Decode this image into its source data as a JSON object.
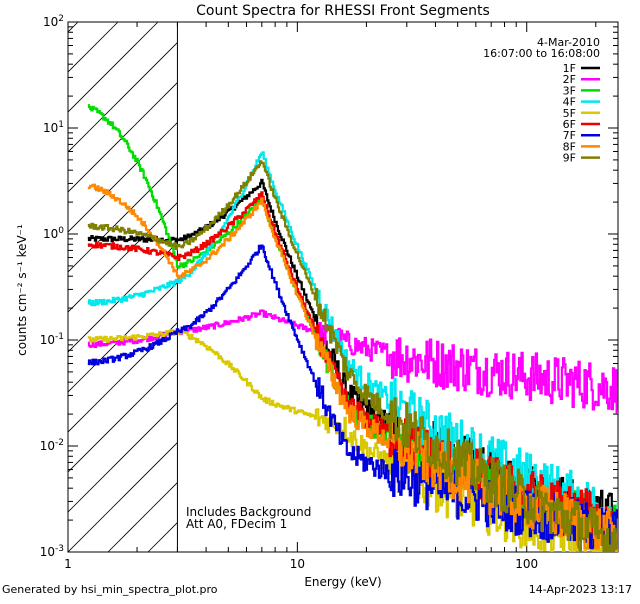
{
  "chart_data": {
    "type": "line",
    "title": "Count Spectra for RHESSI Front Segments",
    "xlabel": "Energy (keV)",
    "ylabel": "counts cm⁻² s⁻¹ keV⁻¹",
    "xscale": "log",
    "yscale": "log",
    "xlim": [
      1,
      250
    ],
    "ylim": [
      0.001,
      100
    ],
    "x_tick_labels": [
      "1",
      "10",
      "100"
    ],
    "y_tick_labels": [
      {
        "mant": "10",
        "exp": "-3",
        "value": 0.001
      },
      {
        "mant": "10",
        "exp": "-2",
        "value": 0.01
      },
      {
        "mant": "10",
        "exp": "-1",
        "value": 0.1
      },
      {
        "mant": "10",
        "exp": "0",
        "value": 1
      },
      {
        "mant": "10",
        "exp": "1",
        "value": 10
      },
      {
        "mant": "10",
        "exp": "2",
        "value": 100
      }
    ],
    "date": "4-Mar-2010",
    "time_range": "16:07:00 to 16:08:00",
    "hatched_region_keV": [
      1,
      3
    ],
    "annotations": [
      "Includes Background",
      "Att A0, FDecim 1"
    ],
    "series": [
      {
        "name": "1F",
        "color": "#000000",
        "low": 0.9,
        "thr": 0.88,
        "peak": 3.1,
        "tail": 0.002
      },
      {
        "name": "2F",
        "color": "#ff00ff",
        "low": 0.09,
        "thr": 0.12,
        "peak": 0.18,
        "tail": 0.035
      },
      {
        "name": "3F",
        "color": "#00dd00",
        "low": 17,
        "thr": 0.5,
        "peak": 2.2,
        "tail": 0.0016
      },
      {
        "name": "4F",
        "color": "#00e8ee",
        "low": 0.22,
        "thr": 0.36,
        "peak": 6.0,
        "tail": 0.0022
      },
      {
        "name": "5F",
        "color": "#d8c800",
        "low": 0.1,
        "thr": 0.12,
        "peak": 0.028,
        "tail": 0.0009
      },
      {
        "name": "6F",
        "color": "#ee0000",
        "low": 0.8,
        "thr": 0.6,
        "peak": 2.4,
        "tail": 0.0018
      },
      {
        "name": "7F",
        "color": "#0000dd",
        "low": 0.06,
        "thr": 0.12,
        "peak": 0.8,
        "tail": 0.0015
      },
      {
        "name": "8F",
        "color": "#ff8800",
        "low": 3.0,
        "thr": 0.4,
        "peak": 2.1,
        "tail": 0.0014
      },
      {
        "name": "9F",
        "color": "#808000",
        "low": 1.2,
        "thr": 0.75,
        "peak": 5.0,
        "tail": 0.0012
      }
    ]
  },
  "footer": {
    "left": "Generated by hsi_min_spectra_plot.pro",
    "right": "14-Apr-2023 13:17"
  }
}
